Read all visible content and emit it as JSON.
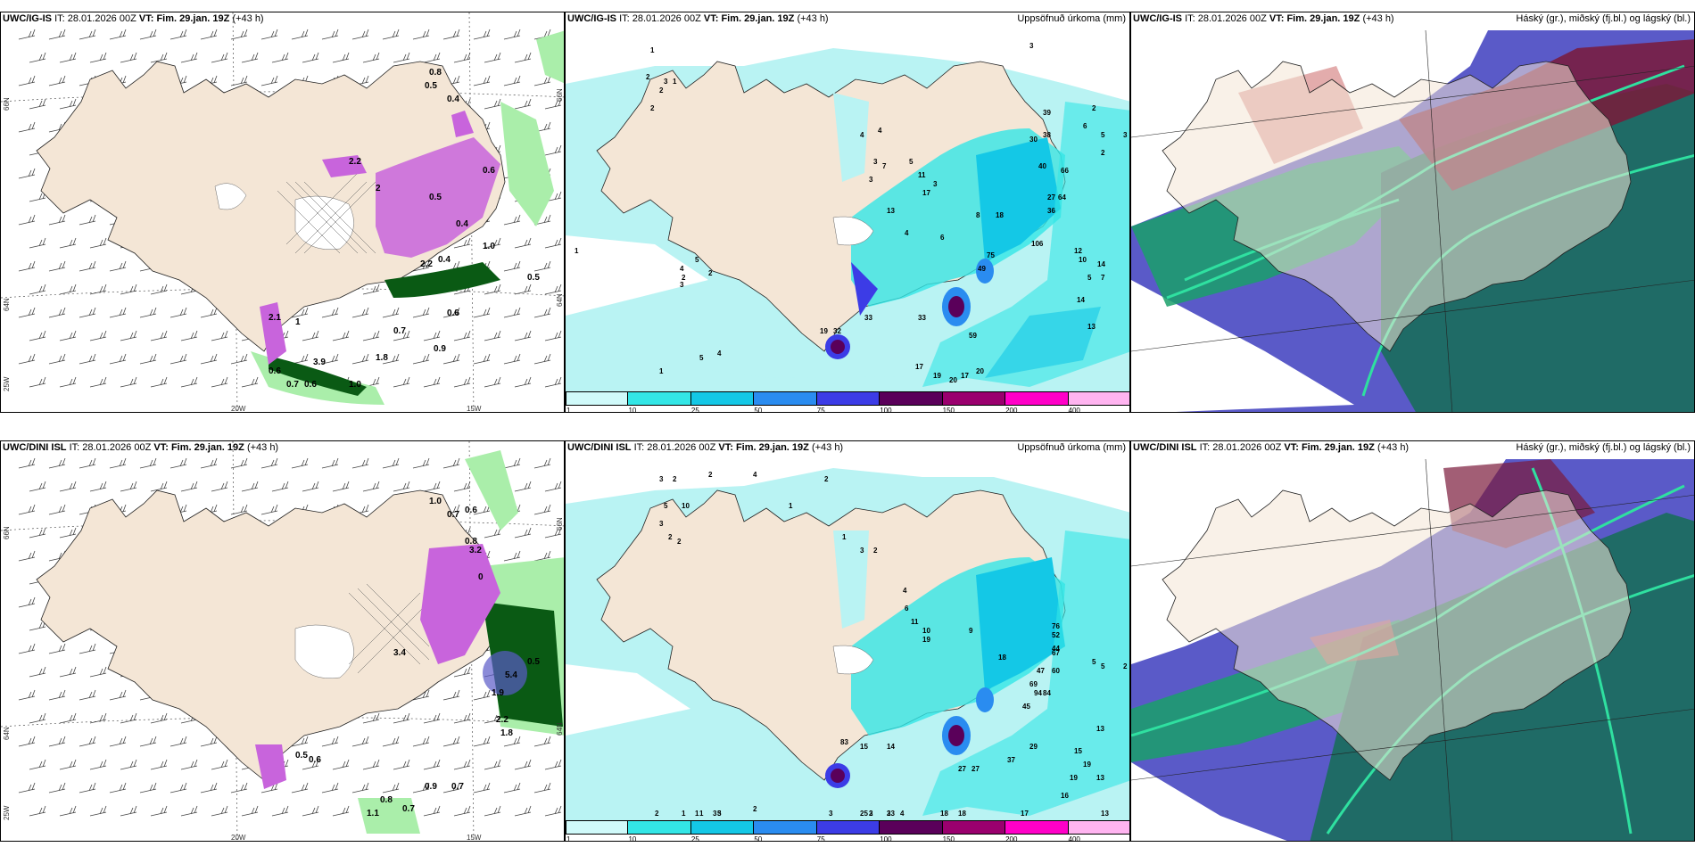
{
  "panels": [
    {
      "id": "p1",
      "model": "UWC/IG-IS",
      "it_label": "IT:",
      "it_value": "28.01.2026 00Z",
      "vt_label": "VT:",
      "vt_value": "Fim. 29.jan. 19Z",
      "lead": "(+43 h)",
      "title_right": "",
      "lon_labels": [
        "20W",
        "15W"
      ],
      "lat_labels": [
        "66N",
        "64N"
      ],
      "lat_labels_left": [
        "66N",
        "64N",
        "25W"
      ],
      "values": [
        "0.8",
        "0.5",
        "0.4",
        "2.2",
        "2",
        "0.5",
        "0.6",
        "0.4",
        "2.1",
        "1",
        "0.4",
        "1.0",
        "2.2",
        "0.7",
        "0.6",
        "0.6",
        "1.8",
        "0.9",
        "0.5",
        "0.6",
        "0.7",
        "1.0",
        "3.9"
      ]
    },
    {
      "id": "p2",
      "model": "UWC/IG-IS",
      "it_label": "IT:",
      "it_value": "28.01.2026 00Z",
      "vt_label": "VT:",
      "vt_value": "Fim. 29.jan. 19Z",
      "lead": "(+43 h)",
      "title_right": "Uppsöfnuð úrkoma (mm)",
      "values": [
        "1",
        "2",
        "2",
        "1",
        "2",
        "3",
        "4",
        "4",
        "3",
        "3",
        "7",
        "5",
        "11",
        "17",
        "3",
        "13",
        "4",
        "6",
        "8",
        "18",
        "75",
        "49",
        "106",
        "27",
        "36",
        "64",
        "66",
        "40",
        "30",
        "38",
        "39",
        "3",
        "2",
        "6",
        "5",
        "2",
        "3",
        "1",
        "5",
        "4",
        "3",
        "2",
        "2",
        "1",
        "32",
        "33",
        "19",
        "5",
        "4",
        "33",
        "59",
        "17",
        "19",
        "20",
        "17",
        "20",
        "12",
        "10",
        "14",
        "14",
        "13",
        "5",
        "7"
      ],
      "colorbar_ticks": [
        "1",
        "10",
        "25",
        "50",
        "75",
        "100",
        "150",
        "200",
        "400"
      ]
    },
    {
      "id": "p3",
      "model": "UWC/IG-IS",
      "it_label": "IT:",
      "it_value": "28.01.2026 00Z",
      "vt_label": "VT:",
      "vt_value": "Fim. 29.jan. 19Z",
      "lead": "(+43 h)",
      "title_right": "Háský (gr.), miðský (fj.bl.) og lágský (bl.)"
    },
    {
      "id": "p4",
      "model": "UWC/DINI ISL",
      "it_label": "IT:",
      "it_value": "28.01.2026 00Z",
      "vt_label": "VT:",
      "vt_value": "Fim. 29.jan. 19Z",
      "lead": "(+43 h)",
      "title_right": "",
      "lon_labels": [
        "20W",
        "15W"
      ],
      "lat_labels": [
        "66N",
        "64N"
      ],
      "lat_labels_left": [
        "66N",
        "64N",
        "25W"
      ],
      "values": [
        "1.0",
        "0.7",
        "0.6",
        "0.8",
        "3.2",
        "0",
        "0.5",
        "1.9",
        "5.4",
        "2.2",
        "1.8",
        "3.4",
        "0.6",
        "0.9",
        "0.7",
        "0.8",
        "0.7",
        "1.1",
        "0.5"
      ]
    },
    {
      "id": "p5",
      "model": "UWC/DINI ISL",
      "it_label": "IT:",
      "it_value": "28.01.2026 00Z",
      "vt_label": "VT:",
      "vt_value": "Fim. 29.jan. 19Z",
      "lead": "(+43 h)",
      "title_right": "Uppsöfnuð úrkoma (mm)",
      "values": [
        "3",
        "2",
        "2",
        "4",
        "1",
        "2",
        "5",
        "10",
        "3",
        "2",
        "2",
        "1",
        "3",
        "2",
        "4",
        "6",
        "11",
        "10",
        "19",
        "9",
        "18",
        "52",
        "44",
        "60",
        "67",
        "76",
        "47",
        "69",
        "94",
        "84",
        "45",
        "3",
        "2",
        "3",
        "4",
        "3",
        "2",
        "5",
        "3",
        "1",
        "1",
        "3",
        "1",
        "2",
        "83",
        "15",
        "14",
        "27",
        "27",
        "37",
        "29",
        "17",
        "18",
        "18",
        "16",
        "13",
        "23",
        "25",
        "19",
        "13",
        "15",
        "19",
        "13",
        "5",
        "5",
        "2"
      ],
      "colorbar_ticks": [
        "1",
        "10",
        "25",
        "50",
        "75",
        "100",
        "150",
        "200",
        "400"
      ]
    },
    {
      "id": "p6",
      "model": "UWC/DINI ISL",
      "it_label": "IT:",
      "it_value": "28.01.2026 00Z",
      "vt_label": "VT:",
      "vt_value": "Fim. 29.jan. 19Z",
      "lead": "(+43 h)",
      "title_right": "Háský (gr.), miðský (fj.bl.) og lágský (bl.)"
    }
  ],
  "colors": {
    "land": "#f4e6d6",
    "sea": "#ffffff",
    "precip_light": "#b9f3f3",
    "precip_mid": "#33e6e6",
    "precip_25": "#14c8e6",
    "precip_50": "#2a8cf0",
    "precip_75": "#3c3ce6",
    "precip_100": "#5a005a",
    "precip_150": "#9a006e",
    "precip_200": "#ff00c8",
    "precip_400": "#ffb4f0",
    "green_light": "#aaeeaa",
    "green_dark": "#0a5a14",
    "magenta": "#c864dc",
    "cloud_high": "#1aa06a",
    "cloud_mid": "#5a5ac8",
    "cloud_low": "#7a1a3a",
    "cloud_teal": "#2fe0a0"
  },
  "colorbar_colors": [
    "#d0fafa",
    "#33e6e6",
    "#14c8e6",
    "#2a8cf0",
    "#3c3ce6",
    "#5a005a",
    "#9a006e",
    "#ff00c8",
    "#ffb4f0"
  ]
}
